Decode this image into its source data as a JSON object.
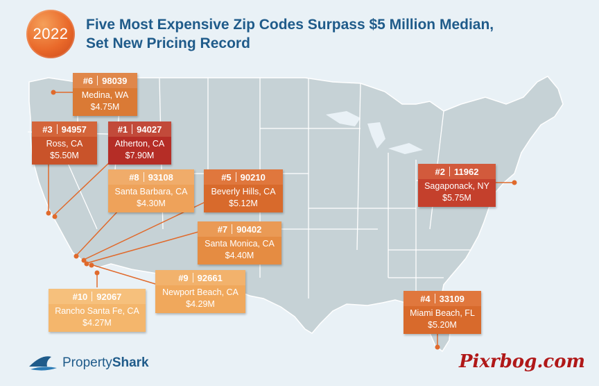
{
  "year": "2022",
  "title_line1": "Five Most Expensive Zip Codes Surpass $5 Million Median,",
  "title_line2": "Set New Pricing Record",
  "logo": {
    "prefix": "Property",
    "bold": "Shark"
  },
  "watermark": "Pixrbog.com",
  "callouts": [
    {
      "rank": "#6",
      "zip": "98039",
      "city": "Medina, WA",
      "price": "$4.75M",
      "color_head": "#e0874a",
      "color_body": "#da7a35"
    },
    {
      "rank": "#3",
      "zip": "94957",
      "city": "Ross, CA",
      "price": "$5.50M",
      "color_head": "#d4653a",
      "color_body": "#c9532a"
    },
    {
      "rank": "#1",
      "zip": "94027",
      "city": "Atherton, CA",
      "price": "$7.90M",
      "color_head": "#c24a3a",
      "color_body": "#b52d26"
    },
    {
      "rank": "#8",
      "zip": "93108",
      "city": "Santa Barbara, CA",
      "price": "$4.30M",
      "color_head": "#f0ac6a",
      "color_body": "#eea25a"
    },
    {
      "rank": "#5",
      "zip": "90210",
      "city": "Beverly Hills, CA",
      "price": "$5.12M",
      "color_head": "#e0773d",
      "color_body": "#d86a2c"
    },
    {
      "rank": "#2",
      "zip": "11962",
      "city": "Sagaponack, NY",
      "price": "$5.75M",
      "color_head": "#d25a3c",
      "color_body": "#c4402c"
    },
    {
      "rank": "#7",
      "zip": "90402",
      "city": "Santa Monica, CA",
      "price": "$4.40M",
      "color_head": "#ea9a55",
      "color_body": "#e58c42"
    },
    {
      "rank": "#9",
      "zip": "92661",
      "city": "Newport Beach, CA",
      "price": "$4.29M",
      "color_head": "#f2b26c",
      "color_body": "#f0a85c"
    },
    {
      "rank": "#10",
      "zip": "92067",
      "city": "Rancho Santa Fe, CA",
      "price": "$4.27M",
      "color_head": "#f6c07c",
      "color_body": "#f4b66c"
    },
    {
      "rank": "#4",
      "zip": "33109",
      "city": "Miami Beach, FL",
      "price": "$5.20M",
      "color_head": "#e0773d",
      "color_body": "#d86a2c"
    }
  ],
  "colors": {
    "land": "#c6d2d6",
    "border": "#ffffff",
    "leader": "#e06a2c",
    "title": "#1f5b8a"
  }
}
